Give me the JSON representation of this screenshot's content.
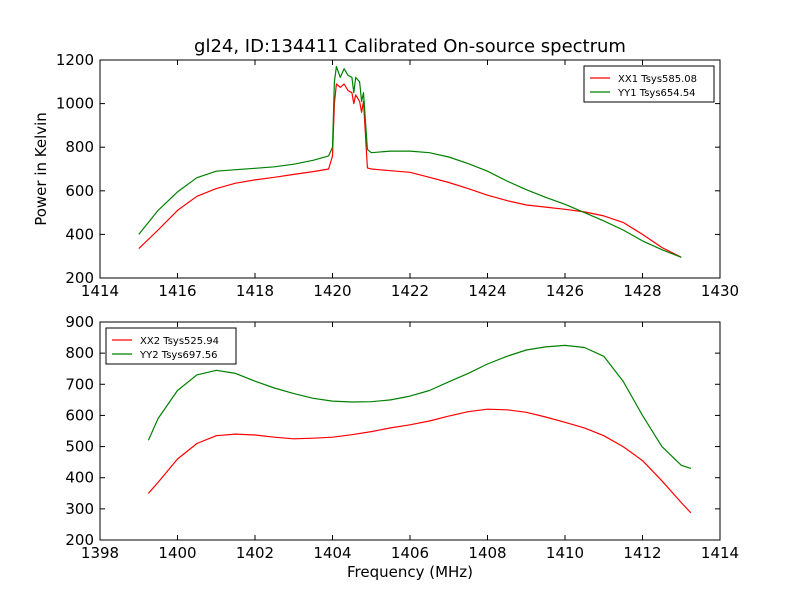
{
  "chart_data": {
    "title": "gl24, ID:134411 Calibrated On-source spectrum",
    "xlabel": "Frequency (MHz)",
    "ylabel": "Power in Kelvin",
    "panels": [
      {
        "type": "line",
        "xlim": [
          1414,
          1430
        ],
        "ylim": [
          200,
          1200
        ],
        "xticks": [
          1414,
          1416,
          1418,
          1420,
          1422,
          1424,
          1426,
          1428,
          1430
        ],
        "yticks": [
          200,
          400,
          600,
          800,
          1000,
          1200
        ],
        "legend_position": "top-right",
        "series": [
          {
            "name": "XX1 Tsys585.08",
            "color": "#ff0000",
            "x": [
              1415.0,
              1415.5,
              1416.0,
              1416.5,
              1417.0,
              1417.5,
              1418.0,
              1418.5,
              1419.0,
              1419.5,
              1419.9,
              1420.0,
              1420.05,
              1420.1,
              1420.2,
              1420.3,
              1420.4,
              1420.5,
              1420.55,
              1420.6,
              1420.7,
              1420.75,
              1420.8,
              1420.9,
              1421.0,
              1421.5,
              1422.0,
              1422.5,
              1423.0,
              1423.5,
              1424.0,
              1424.5,
              1425.0,
              1425.5,
              1426.0,
              1426.5,
              1427.0,
              1427.5,
              1428.0,
              1428.5,
              1429.0
            ],
            "y": [
              335,
              420,
              510,
              575,
              610,
              635,
              650,
              662,
              675,
              688,
              700,
              760,
              1000,
              1090,
              1075,
              1090,
              1060,
              1050,
              1000,
              1040,
              1010,
              960,
              1010,
              705,
              700,
              692,
              685,
              662,
              638,
              610,
              580,
              555,
              535,
              525,
              515,
              503,
              485,
              455,
              400,
              340,
              295
            ]
          },
          {
            "name": "YY1 Tsys654.54",
            "color": "#008000",
            "x": [
              1415.0,
              1415.5,
              1416.0,
              1416.5,
              1417.0,
              1417.5,
              1418.0,
              1418.5,
              1419.0,
              1419.5,
              1419.9,
              1420.0,
              1420.05,
              1420.1,
              1420.2,
              1420.3,
              1420.4,
              1420.5,
              1420.55,
              1420.6,
              1420.7,
              1420.75,
              1420.8,
              1420.9,
              1421.0,
              1421.5,
              1422.0,
              1422.5,
              1423.0,
              1423.5,
              1424.0,
              1424.5,
              1425.0,
              1425.5,
              1426.0,
              1426.5,
              1427.0,
              1427.5,
              1428.0,
              1428.5,
              1429.0
            ],
            "y": [
              400,
              510,
              595,
              660,
              690,
              697,
              703,
              710,
              722,
              740,
              760,
              800,
              1100,
              1170,
              1120,
              1160,
              1130,
              1120,
              1050,
              1120,
              1100,
              1010,
              1050,
              790,
              775,
              782,
              782,
              775,
              755,
              725,
              690,
              645,
              605,
              570,
              538,
              500,
              462,
              420,
              370,
              330,
              295
            ]
          }
        ]
      },
      {
        "type": "line",
        "xlim": [
          1398,
          1414
        ],
        "ylim": [
          200,
          900
        ],
        "xticks": [
          1398,
          1400,
          1402,
          1404,
          1406,
          1408,
          1410,
          1412,
          1414
        ],
        "yticks": [
          200,
          300,
          400,
          500,
          600,
          700,
          800,
          900
        ],
        "legend_position": "top-left",
        "series": [
          {
            "name": "XX2 Tsys525.94",
            "color": "#ff0000",
            "x": [
              1399.25,
              1399.5,
              1400.0,
              1400.5,
              1401.0,
              1401.5,
              1402.0,
              1402.5,
              1403.0,
              1403.5,
              1404.0,
              1404.5,
              1405.0,
              1405.5,
              1406.0,
              1406.5,
              1407.0,
              1407.5,
              1408.0,
              1408.5,
              1409.0,
              1409.5,
              1410.0,
              1410.5,
              1411.0,
              1411.5,
              1412.0,
              1412.5,
              1413.0,
              1413.25
            ],
            "y": [
              350,
              385,
              460,
              510,
              535,
              540,
              537,
              530,
              525,
              527,
              530,
              538,
              548,
              560,
              570,
              582,
              598,
              612,
              620,
              618,
              610,
              595,
              578,
              560,
              535,
              500,
              455,
              390,
              320,
              287
            ]
          },
          {
            "name": "YY2 Tsys697.56",
            "color": "#008000",
            "x": [
              1399.25,
              1399.5,
              1400.0,
              1400.5,
              1401.0,
              1401.5,
              1402.0,
              1402.5,
              1403.0,
              1403.5,
              1404.0,
              1404.5,
              1405.0,
              1405.5,
              1406.0,
              1406.5,
              1407.0,
              1407.5,
              1408.0,
              1408.5,
              1409.0,
              1409.5,
              1410.0,
              1410.5,
              1411.0,
              1411.5,
              1412.0,
              1412.5,
              1413.0,
              1413.25
            ],
            "y": [
              520,
              590,
              680,
              730,
              745,
              735,
              710,
              688,
              670,
              655,
              646,
              643,
              644,
              650,
              662,
              680,
              708,
              735,
              765,
              790,
              810,
              820,
              825,
              818,
              790,
              710,
              600,
              500,
              440,
              430
            ]
          }
        ]
      }
    ]
  }
}
